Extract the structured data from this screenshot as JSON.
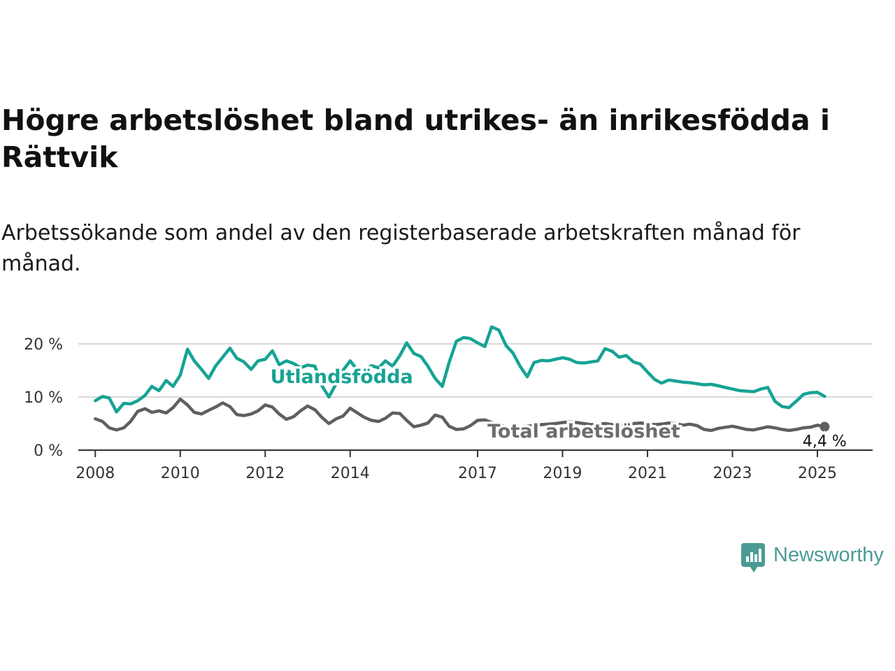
{
  "title": "Högre arbetslöshet bland utrikes- än inrikesfödda i Rättvik",
  "subtitle": "Arbetssökande som andel av den registerbaserade arbetskraften månad för månad.",
  "brand": {
    "name": "Newsworthy",
    "icon": "bar-chart-speech-bubble-icon",
    "color": "#4a9b93"
  },
  "chart_data": {
    "type": "line",
    "ylim": [
      0,
      25
    ],
    "yticks": [
      0,
      10,
      20
    ],
    "ytick_labels": [
      "0 %",
      "10 %",
      "20 %"
    ],
    "xlim": [
      2007.6,
      2026.3
    ],
    "xticks": [
      2008,
      2010,
      2012,
      2014,
      2017,
      2019,
      2021,
      2023,
      2025
    ],
    "xtick_labels": [
      "2008",
      "2010",
      "2012",
      "2014",
      "2017",
      "2019",
      "2021",
      "2023",
      "2025"
    ],
    "grid": true,
    "last_value_label": "4,4 %",
    "series": [
      {
        "name": "Utlandsfödda",
        "color": "#16a394",
        "x": [
          2008.0,
          2008.17,
          2008.33,
          2008.5,
          2008.67,
          2008.83,
          2009.0,
          2009.17,
          2009.33,
          2009.5,
          2009.67,
          2009.83,
          2010.0,
          2010.17,
          2010.33,
          2010.5,
          2010.67,
          2010.83,
          2011.0,
          2011.17,
          2011.33,
          2011.5,
          2011.67,
          2011.83,
          2012.0,
          2012.17,
          2012.33,
          2012.5,
          2012.67,
          2012.83,
          2013.0,
          2013.17,
          2013.33,
          2013.5,
          2013.67,
          2013.83,
          2014.0,
          2014.17,
          2014.33,
          2014.5,
          2014.67,
          2014.83,
          2015.0,
          2015.17,
          2015.33,
          2015.5,
          2015.67,
          2015.83,
          2016.0,
          2016.17,
          2016.33,
          2016.5,
          2016.67,
          2016.83,
          2017.0,
          2017.17,
          2017.33,
          2017.5,
          2017.67,
          2017.83,
          2018.0,
          2018.17,
          2018.33,
          2018.5,
          2018.67,
          2018.83,
          2019.0,
          2019.17,
          2019.33,
          2019.5,
          2019.67,
          2019.83,
          2020.0,
          2020.17,
          2020.33,
          2020.5,
          2020.67,
          2020.83,
          2021.0,
          2021.17,
          2021.33,
          2021.5,
          2021.67,
          2021.83,
          2022.0,
          2022.17,
          2022.33,
          2022.5,
          2022.67,
          2022.83,
          2023.0,
          2023.17,
          2023.33,
          2023.5,
          2023.67,
          2023.83,
          2024.0,
          2024.17,
          2024.33,
          2024.5,
          2024.67,
          2024.83,
          2025.0,
          2025.17
        ],
        "y": [
          9.3,
          10.1,
          9.8,
          7.2,
          8.8,
          8.7,
          9.3,
          10.3,
          12.0,
          11.2,
          13.1,
          12.0,
          14.1,
          19.0,
          16.8,
          15.2,
          13.5,
          15.8,
          17.5,
          19.2,
          17.3,
          16.6,
          15.2,
          16.8,
          17.1,
          18.7,
          16.1,
          16.8,
          16.3,
          15.5,
          16.0,
          15.8,
          12.2,
          10.0,
          12.5,
          15.0,
          16.8,
          15.1,
          14.8,
          15.9,
          15.5,
          16.8,
          15.8,
          17.8,
          20.2,
          18.2,
          17.6,
          15.8,
          13.5,
          12.0,
          16.5,
          20.5,
          21.2,
          21.0,
          20.2,
          19.5,
          23.2,
          22.6,
          19.7,
          18.3,
          15.8,
          13.8,
          16.5,
          16.9,
          16.8,
          17.1,
          17.4,
          17.1,
          16.5,
          16.4,
          16.6,
          16.8,
          19.1,
          18.6,
          17.5,
          17.8,
          16.6,
          16.2,
          14.7,
          13.3,
          12.6,
          13.2,
          13.0,
          12.8,
          12.7,
          12.5,
          12.3,
          12.4,
          12.1,
          11.8,
          11.5,
          11.2,
          11.1,
          11.0,
          11.5,
          11.8,
          9.2,
          8.2,
          8.0,
          9.2,
          10.5,
          10.8,
          10.9,
          10.1
        ]
      },
      {
        "name": "Total arbetslöshet",
        "color": "#5f5e62",
        "x": [
          2008.0,
          2008.17,
          2008.33,
          2008.5,
          2008.67,
          2008.83,
          2009.0,
          2009.17,
          2009.33,
          2009.5,
          2009.67,
          2009.83,
          2010.0,
          2010.17,
          2010.33,
          2010.5,
          2010.67,
          2010.83,
          2011.0,
          2011.17,
          2011.33,
          2011.5,
          2011.67,
          2011.83,
          2012.0,
          2012.17,
          2012.33,
          2012.5,
          2012.67,
          2012.83,
          2013.0,
          2013.17,
          2013.33,
          2013.5,
          2013.67,
          2013.83,
          2014.0,
          2014.17,
          2014.33,
          2014.5,
          2014.67,
          2014.83,
          2015.0,
          2015.17,
          2015.33,
          2015.5,
          2015.67,
          2015.83,
          2016.0,
          2016.17,
          2016.33,
          2016.5,
          2016.67,
          2016.83,
          2017.0,
          2017.17,
          2017.33,
          2017.5,
          2017.67,
          2017.83,
          2018.0,
          2018.17,
          2018.33,
          2018.5,
          2018.67,
          2018.83,
          2019.0,
          2019.17,
          2019.33,
          2019.5,
          2019.67,
          2019.83,
          2020.0,
          2020.17,
          2020.33,
          2020.5,
          2020.67,
          2020.83,
          2021.0,
          2021.17,
          2021.33,
          2021.5,
          2021.67,
          2021.83,
          2022.0,
          2022.17,
          2022.33,
          2022.5,
          2022.67,
          2022.83,
          2023.0,
          2023.17,
          2023.33,
          2023.5,
          2023.67,
          2023.83,
          2024.0,
          2024.17,
          2024.33,
          2024.5,
          2024.67,
          2024.83,
          2025.0,
          2025.17
        ],
        "y": [
          5.9,
          5.4,
          4.2,
          3.8,
          4.2,
          5.4,
          7.3,
          7.8,
          7.1,
          7.4,
          7.0,
          8.0,
          9.6,
          8.5,
          7.1,
          6.8,
          7.5,
          8.1,
          8.9,
          8.2,
          6.7,
          6.5,
          6.8,
          7.4,
          8.5,
          8.1,
          6.8,
          5.8,
          6.3,
          7.4,
          8.3,
          7.6,
          6.2,
          5.0,
          5.9,
          6.4,
          7.9,
          7.0,
          6.2,
          5.6,
          5.4,
          6.0,
          7.0,
          6.9,
          5.6,
          4.4,
          4.7,
          5.1,
          6.6,
          6.2,
          4.5,
          3.9,
          4.0,
          4.6,
          5.6,
          5.7,
          5.2,
          4.9,
          4.3,
          4.2,
          4.4,
          4.5,
          4.6,
          4.8,
          4.9,
          5.0,
          5.2,
          5.3,
          5.2,
          5.0,
          4.8,
          4.9,
          5.0,
          4.8,
          4.7,
          4.9,
          5.0,
          5.1,
          5.0,
          4.8,
          4.9,
          5.1,
          5.0,
          4.7,
          4.9,
          4.6,
          3.9,
          3.7,
          4.1,
          4.3,
          4.5,
          4.2,
          3.9,
          3.8,
          4.1,
          4.4,
          4.2,
          3.9,
          3.7,
          3.9,
          4.2,
          4.3,
          4.7,
          4.4
        ]
      }
    ]
  }
}
